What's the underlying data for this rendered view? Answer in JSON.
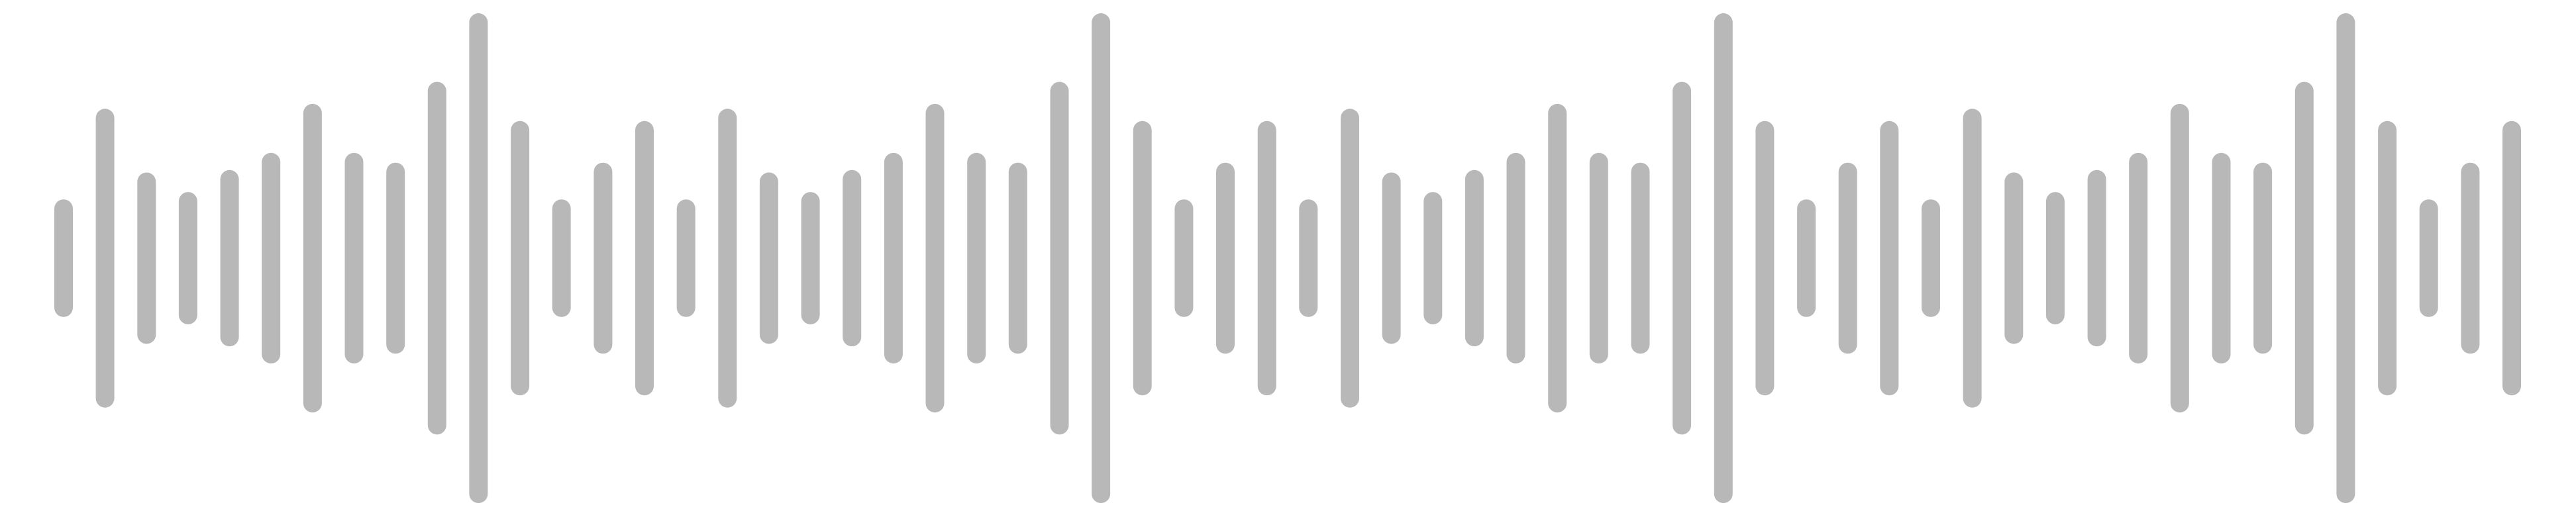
{
  "waveform": {
    "color": "#b8b8b8",
    "background": "#ffffff",
    "bar_levels": [
      0.24,
      0.61,
      0.35,
      0.27,
      0.36,
      0.43,
      0.63,
      0.43,
      0.39,
      0.72,
      1.0,
      0.56,
      0.24,
      0.39,
      0.56,
      0.24,
      0.61,
      0.35,
      0.27,
      0.36,
      0.43,
      0.63,
      0.43,
      0.39,
      0.72,
      1.0,
      0.56,
      0.24,
      0.39,
      0.56,
      0.24,
      0.61,
      0.35,
      0.27,
      0.36,
      0.43,
      0.63,
      0.43,
      0.39,
      0.72,
      1.0,
      0.56,
      0.24,
      0.39,
      0.56,
      0.24,
      0.61,
      0.35,
      0.27,
      0.36,
      0.43,
      0.63,
      0.43,
      0.39,
      0.72,
      1.0,
      0.56,
      0.24,
      0.39,
      0.56
    ]
  }
}
